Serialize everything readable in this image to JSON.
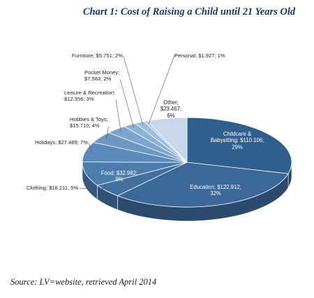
{
  "chart_data": {
    "type": "pie",
    "title": "Chart 1: Cost of Raising a Child until 21 Years Old",
    "slices": [
      {
        "label": "Childcare & Babysitting",
        "display": [
          "Childcare &",
          "Babysitting; $110.106;",
          "29%"
        ],
        "value": 110.106,
        "percent": 29,
        "color": "#2f5f8f"
      },
      {
        "label": "Education",
        "display": [
          "Education; $122.912;",
          "32%"
        ],
        "value": 122.912,
        "percent": 32,
        "color": "#3a6898"
      },
      {
        "label": "Clothing",
        "display": [
          "Clothing; $18.211; 5%"
        ],
        "value": 18.211,
        "percent": 5,
        "color": "#41709f"
      },
      {
        "label": "Food",
        "display": [
          "Food; $32.982;",
          "9%"
        ],
        "value": 32.982,
        "percent": 9,
        "color": "#4c7cac"
      },
      {
        "label": "Holidays",
        "display": [
          "Holidays; $27.489; 7%"
        ],
        "value": 27.489,
        "percent": 7,
        "color": "#5c8abb"
      },
      {
        "label": "Hobbies & Toys",
        "display": [
          "Hobbies & Toys;",
          "$15.710; 4%"
        ],
        "value": 15.71,
        "percent": 4,
        "color": "#6c97c5"
      },
      {
        "label": "Leisure & Recreation",
        "display": [
          "Leisure & Recreation;",
          "$12.356; 3%"
        ],
        "value": 12.356,
        "percent": 3,
        "color": "#7ca4ce"
      },
      {
        "label": "Pocket Money",
        "display": [
          "Pocket Money;",
          "$7.583; 2%"
        ],
        "value": 7.583,
        "percent": 2,
        "color": "#8db1d6"
      },
      {
        "label": "Furniture",
        "display": [
          "Furniture; $5.751; 2%"
        ],
        "value": 5.751,
        "percent": 2,
        "color": "#9ebedf"
      },
      {
        "label": "Personal",
        "display": [
          "Personal; $1.927; 1%"
        ],
        "value": 1.927,
        "percent": 1,
        "color": "#b0cbe6"
      },
      {
        "label": "Other",
        "display": [
          "Other;",
          "$23.467;",
          "6%"
        ],
        "value": 23.467,
        "percent": 6,
        "color": "#c7d8ec"
      }
    ]
  },
  "source": "Source: LV=website, retrieved April 2014"
}
